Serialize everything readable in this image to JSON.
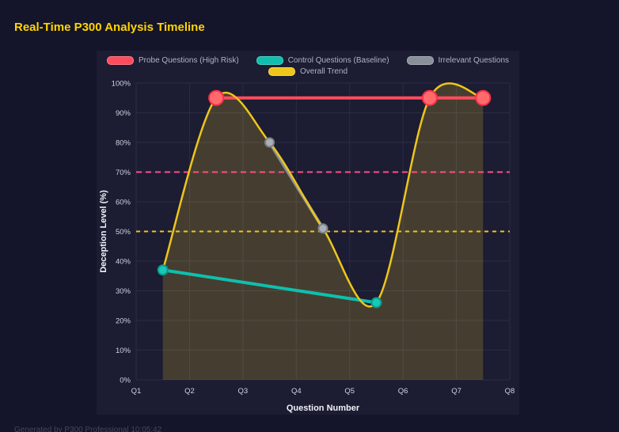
{
  "header": {
    "title": "Real-Time P300 Analysis Timeline"
  },
  "footer": {
    "text": "Generated by P300 Professional  10:05:42"
  },
  "colors": {
    "page_bg": "#14142b",
    "panel_bg": "#1c1c33",
    "grid": "#2b2b47",
    "tick_text": "#cfd3de",
    "axis_title_text": "#f0f2f7",
    "title_yellow": "#ffd400",
    "probe_red": "#ff4d5e",
    "probe_marker": "#ff6b6b",
    "control_teal": "#0fbfae",
    "irrelevant_gray": "#8a9099",
    "trend_yellow": "#eec61a",
    "threshold_pink": "#ff4f7e",
    "threshold_yellow": "#eec61a",
    "area_fill": "rgba(235,200,40,0.20)"
  },
  "chart_data": {
    "type": "line",
    "title": "Real-Time P300 Analysis Timeline",
    "xlabel": "Question Number",
    "ylabel": "Deception Level (%)",
    "x_ticks": [
      "Q1",
      "Q2",
      "Q3",
      "Q4",
      "Q5",
      "Q6",
      "Q7",
      "Q8"
    ],
    "x_range": [
      1,
      8
    ],
    "y_ticks": [
      "0%",
      "10%",
      "20%",
      "30%",
      "40%",
      "50%",
      "60%",
      "70%",
      "80%",
      "90%",
      "100%"
    ],
    "y_range": [
      0,
      100
    ],
    "y_tick_step": 10,
    "grid": true,
    "legend_position": "top",
    "legend_rows": [
      [
        0,
        1,
        2
      ],
      [
        3
      ]
    ],
    "series": [
      {
        "name": "Probe Questions (High Risk)",
        "slug": "probe-questions",
        "color": "#ff4d5e",
        "marker_fill": "#ff6b6b",
        "marker_stroke": "#ff2e4c",
        "line_width": 4,
        "marker_radius": 9,
        "smooth": false,
        "area": false,
        "x": [
          2.5,
          6.5,
          7.5
        ],
        "y": [
          95,
          95,
          95
        ]
      },
      {
        "name": "Control Questions (Baseline)",
        "slug": "control-questions",
        "color": "#0fbfae",
        "marker_fill": "#16c9b8",
        "marker_stroke": "#0a9a8c",
        "line_width": 4,
        "marker_radius": 6,
        "smooth": false,
        "area": false,
        "x": [
          1.5,
          5.5
        ],
        "y": [
          37,
          26
        ]
      },
      {
        "name": "Irrelevant Questions",
        "slug": "irrelevant-questions",
        "color": "#8a9099",
        "marker_fill": "#aab0b8",
        "marker_stroke": "#7c828a",
        "line_width": 4,
        "marker_radius": 5.5,
        "smooth": false,
        "area": false,
        "x": [
          3.5,
          4.5
        ],
        "y": [
          80,
          51
        ]
      },
      {
        "name": "Overall Trend",
        "slug": "overall-trend",
        "color": "#eec61a",
        "marker_fill": "#eec61a",
        "marker_stroke": "#eec61a",
        "line_width": 2.5,
        "marker_radius": 0,
        "smooth": true,
        "area": true,
        "x": [
          1.5,
          2.5,
          3.5,
          4.5,
          5.5,
          6.5,
          7.5
        ],
        "y": [
          37,
          95,
          80,
          51,
          26,
          95,
          95
        ]
      }
    ],
    "thresholds": [
      {
        "value": 70,
        "color": "#ff4f7e",
        "style": "dashed",
        "dash": "7 5"
      },
      {
        "value": 50,
        "color": "#eec61a",
        "style": "dashed",
        "dash": "5 5"
      }
    ]
  }
}
